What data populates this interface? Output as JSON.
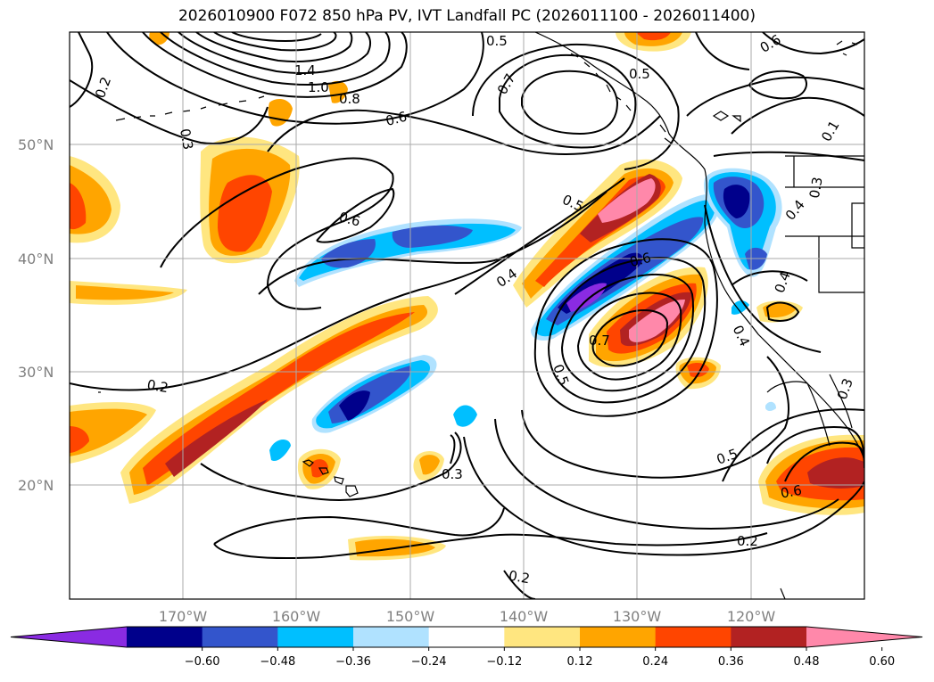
{
  "title": "2026010900 F072 850 hPa PV, IVT Landfall PC (2026011100 - 2026011400)",
  "lat_labels": [
    "50°N",
    "40°N",
    "30°N",
    "20°N"
  ],
  "lon_labels": [
    "170°W",
    "160°W",
    "150°W",
    "140°W",
    "130°W",
    "120°W"
  ],
  "contour_labels": [
    "0.2",
    "0.3",
    "0.6",
    "0.8",
    "1.0",
    "1.4",
    "0.5",
    "0.7",
    "0.5",
    "0.6",
    "0.6",
    "0.5",
    "0.4",
    "0.6",
    "0.7",
    "0.5",
    "0.4",
    "0.4",
    "0.3",
    "0.2",
    "0.3",
    "0.2",
    "0.5",
    "0.6",
    "0.2",
    "0.4",
    "0.3",
    "0.1"
  ],
  "colorbar": {
    "tick_labels": [
      "−0.60",
      "−0.48",
      "−0.36",
      "−0.24",
      "−0.12",
      "0.12",
      "0.24",
      "0.36",
      "0.48",
      "0.60"
    ],
    "colors": [
      "#8a2be2",
      "#00008b",
      "#3355cc",
      "#00bfff",
      "#b0e2ff",
      "#ffffff",
      "#ffe680",
      "#ffa500",
      "#ff4500",
      "#b22222",
      "#ff88aa"
    ]
  }
}
